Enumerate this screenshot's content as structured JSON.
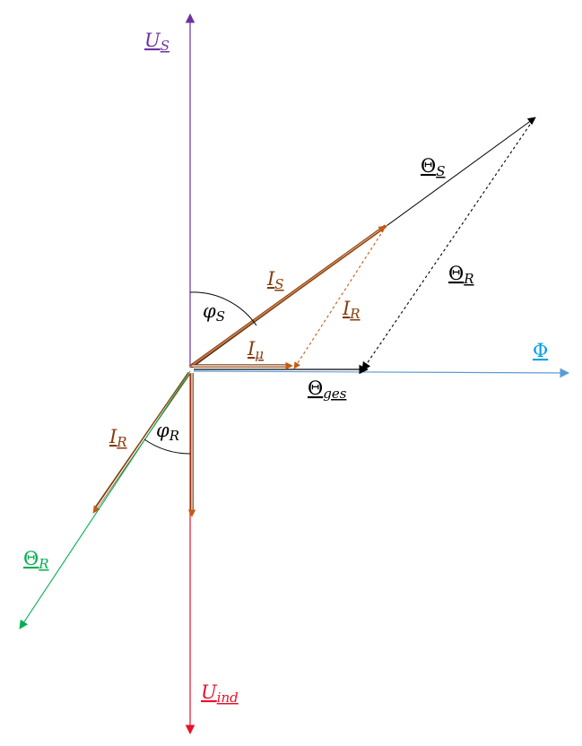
{
  "colors": {
    "voltage_stator": "#7030a0",
    "voltage_induced": "#e8102a",
    "flux": "#5b9bd5",
    "current": "#c55a11",
    "current_edge": "#843c0c",
    "theta_rotor": "#00b050",
    "black": "#000000"
  },
  "labels": {
    "u_s": {
      "main": "U",
      "sub": "S"
    },
    "u_ind": {
      "main": "U",
      "sub": "ind"
    },
    "phi": {
      "main": "Φ"
    },
    "theta_s": {
      "main": "Θ",
      "sub": "S"
    },
    "theta_r_dashed": {
      "main": "Θ",
      "sub": "R"
    },
    "i_s": {
      "main": "I",
      "sub": "S"
    },
    "i_r_dashed": {
      "main": "I",
      "sub": "R"
    },
    "phi_s": {
      "main": "φ",
      "sub": "S"
    },
    "i_mu": {
      "main": "I",
      "sub": "μ"
    },
    "theta_ges": {
      "main": "Θ",
      "sub": "ges"
    },
    "phi_r": {
      "main": "φ",
      "sub": "R"
    },
    "i_r": {
      "main": "I",
      "sub": "R"
    },
    "theta_r": {
      "main": "Θ",
      "sub": "R"
    }
  },
  "icons": [
    "arrow-head"
  ]
}
